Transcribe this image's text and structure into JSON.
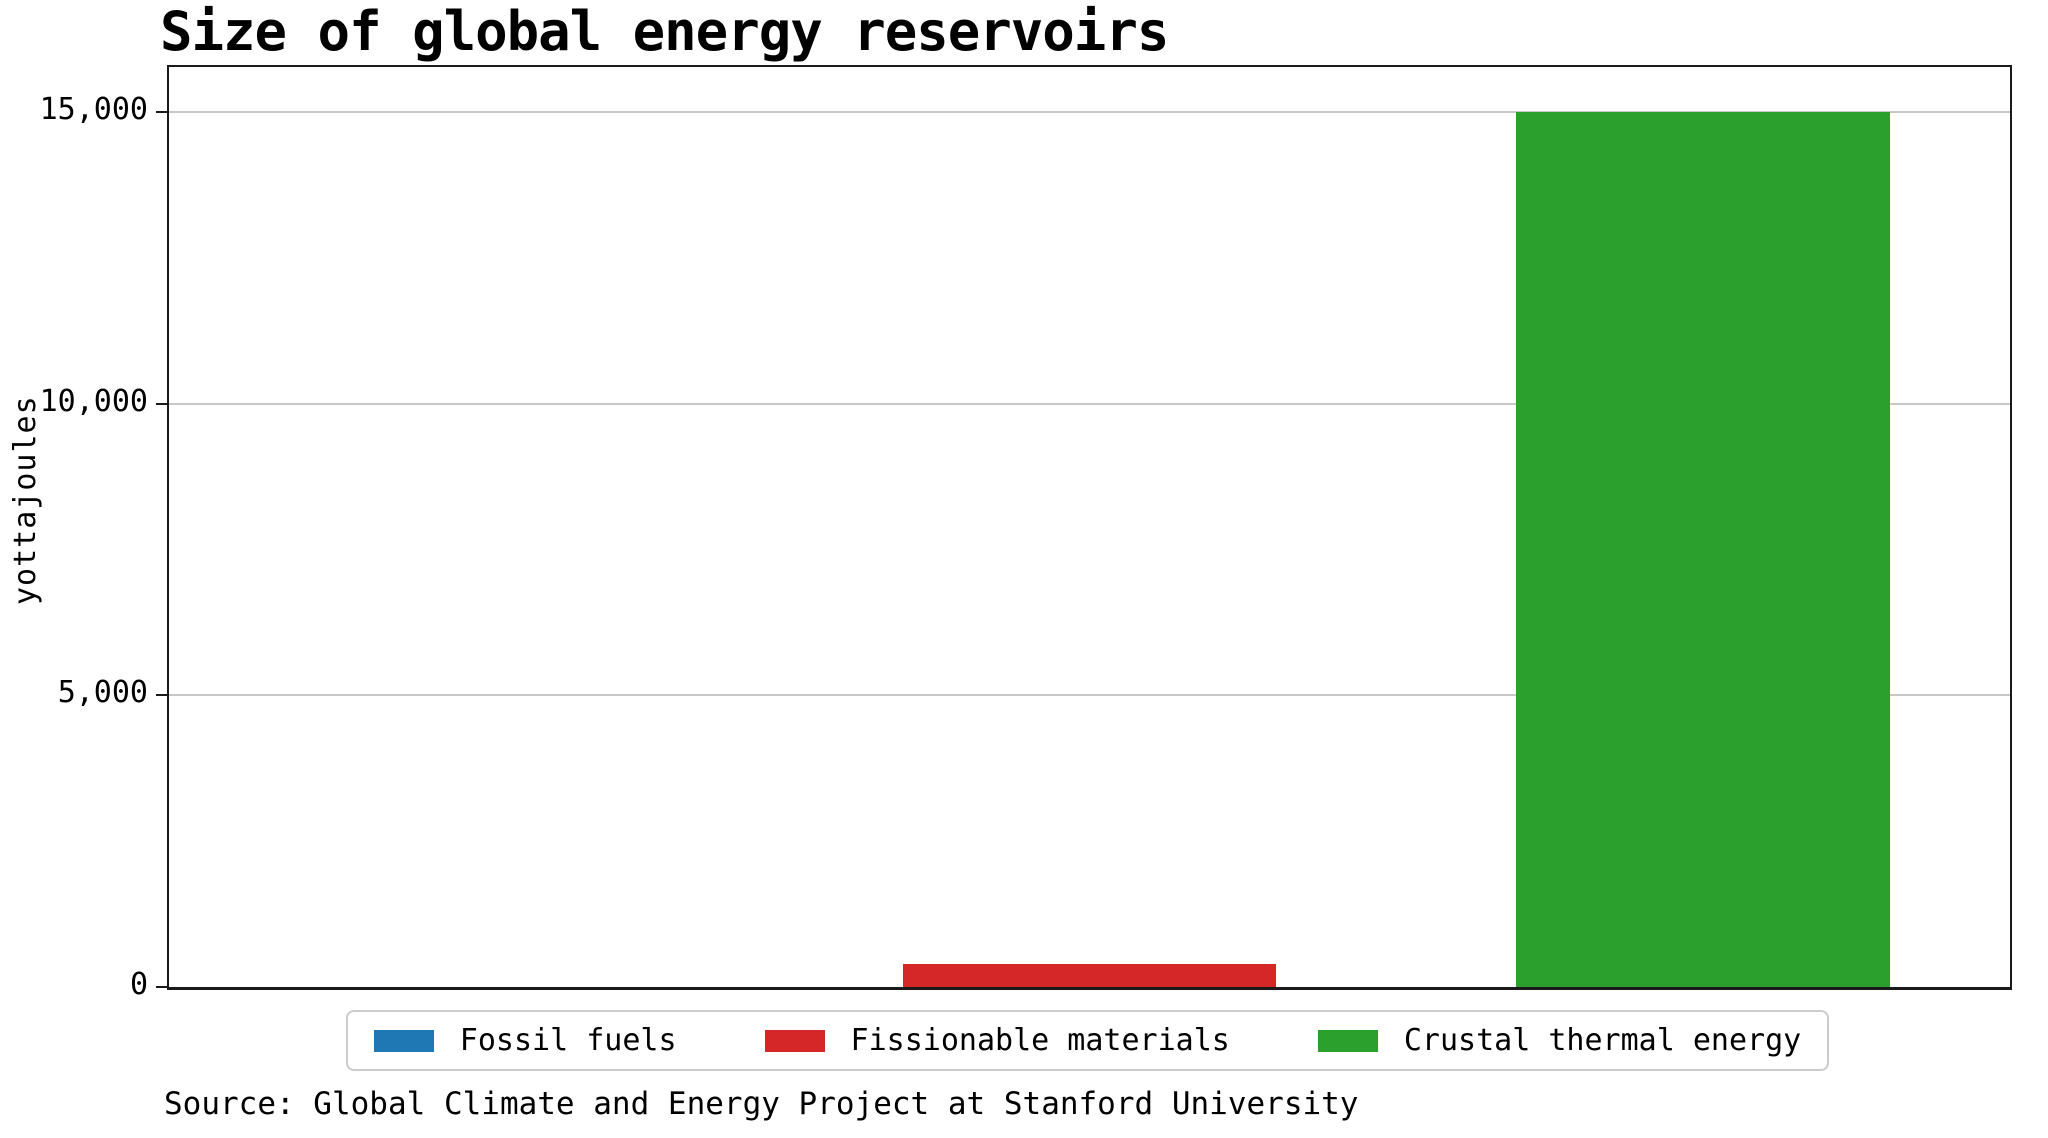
{
  "page": {
    "background_color": "#ffffff",
    "text_color": "#000000"
  },
  "chart_data": {
    "type": "bar",
    "title": "Size of global energy reservoirs",
    "xlabel": "",
    "ylabel": "yottajoules",
    "categories": [
      "Fossil fuels",
      "Fissionable materials",
      "Crustal thermal energy"
    ],
    "values": [
      0,
      400,
      15000
    ],
    "values_note": "Fossil fuels bar is too small to be visible at this axis scale; fissionable materials bar reads ~400 yottajoules against the gridlines; crustal thermal energy bar tops out exactly at the 15,000 gridline",
    "colors": [
      "#1f77b4",
      "#d62728",
      "#2ca02c"
    ],
    "yticks": {
      "values": [
        0,
        5000,
        10000,
        15000
      ],
      "labels": [
        "0",
        "5,000",
        "10,000",
        "15,000"
      ]
    },
    "ylim": [
      0,
      15770
    ],
    "grid": "horizontal gridlines at labeled y ticks",
    "grid_color": "#c8c8c8",
    "spine_color": "#1a1a1a",
    "legend_position": "bottom-center",
    "legend_entries": [
      "Fossil fuels",
      "Fissionable materials",
      "Crustal thermal energy"
    ],
    "bar_width_fraction": 0.203
  },
  "source_note": "Source: Global Climate and Energy Project at Stanford University"
}
